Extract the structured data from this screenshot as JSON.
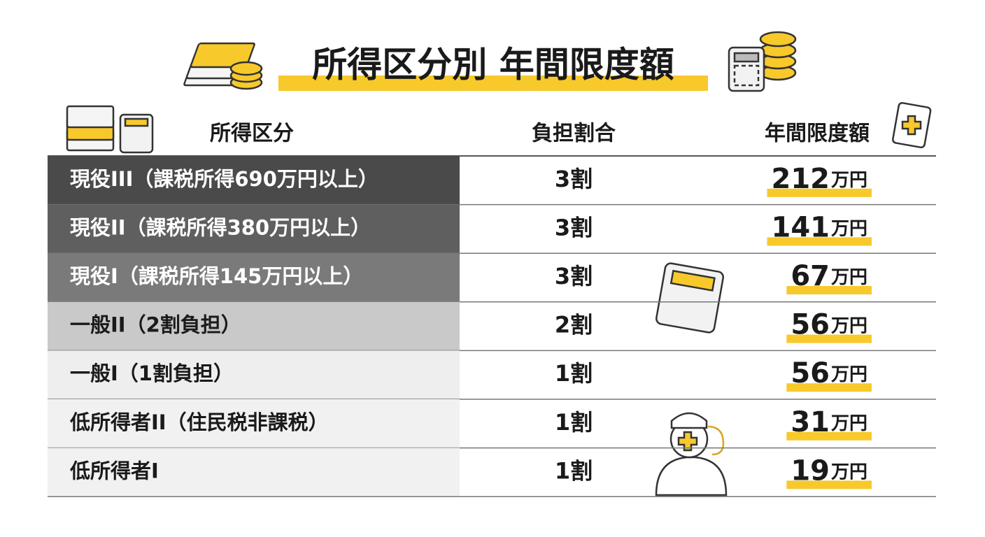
{
  "title": "所得区分別 年間限度額",
  "table": {
    "headers": [
      "所得区分",
      "負担割合",
      "年間限度額"
    ],
    "rows": [
      {
        "category": "現役III（課税所得690万円以上）",
        "ratio": "3割",
        "amount": 212,
        "unit": "万円"
      },
      {
        "category": "現役II（課税所得380万円以上）",
        "ratio": "3割",
        "amount": 141,
        "unit": "万円"
      },
      {
        "category": "現役I（課税所得145万円以上）",
        "ratio": "3割",
        "amount": 67,
        "unit": "万円"
      },
      {
        "category": "一般II（2割負担）",
        "ratio": "2割",
        "amount": 56,
        "unit": "万円"
      },
      {
        "category": "一般I（1割負担）",
        "ratio": "1割",
        "amount": 56,
        "unit": "万円"
      },
      {
        "category": "低所得者II（住民税非課税）",
        "ratio": "1割",
        "amount": 31,
        "unit": "万円"
      },
      {
        "category": "低所得者I",
        "ratio": "1割",
        "amount": 19,
        "unit": "万円"
      }
    ]
  }
}
